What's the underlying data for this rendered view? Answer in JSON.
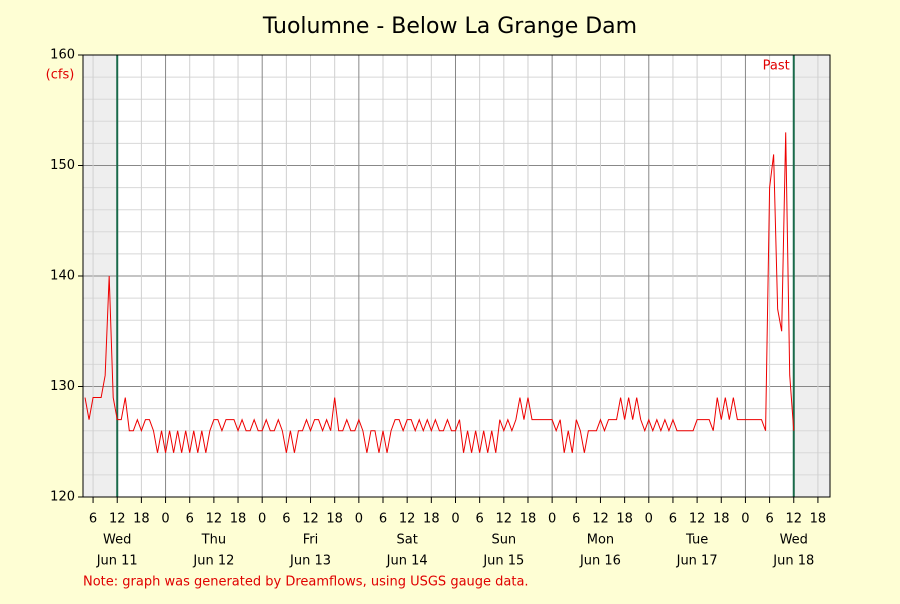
{
  "chart_data": {
    "type": "line",
    "title": "Tuolumne - Below La Grange Dam",
    "y_unit": "(cfs)",
    "marker_label": "Past",
    "note": "Note: graph was generated by Dreamflows, using USGS gauge data.",
    "xlim": [
      3.5,
      189
    ],
    "ylim": [
      120,
      160
    ],
    "yticks": [
      120,
      130,
      140,
      150,
      160
    ],
    "yminor": [
      122,
      124,
      126,
      128,
      132,
      134,
      136,
      138,
      142,
      144,
      146,
      148,
      152,
      154,
      156,
      158
    ],
    "xticks": [
      6,
      12,
      18,
      {
        "value": 24,
        "label": "0"
      },
      {
        "value": 30,
        "label": "6"
      },
      {
        "value": 36,
        "label": "12"
      },
      {
        "value": 42,
        "label": "18"
      },
      {
        "value": 48,
        "label": "0"
      },
      {
        "value": 54,
        "label": "6"
      },
      {
        "value": 60,
        "label": "12"
      },
      {
        "value": 66,
        "label": "18"
      },
      {
        "value": 72,
        "label": "0"
      },
      {
        "value": 78,
        "label": "6"
      },
      {
        "value": 84,
        "label": "12"
      },
      {
        "value": 90,
        "label": "18"
      },
      {
        "value": 96,
        "label": "0"
      },
      {
        "value": 102,
        "label": "6"
      },
      {
        "value": 108,
        "label": "12"
      },
      {
        "value": 114,
        "label": "18"
      },
      {
        "value": 120,
        "label": "0"
      },
      {
        "value": 126,
        "label": "6"
      },
      {
        "value": 132,
        "label": "12"
      },
      {
        "value": 138,
        "label": "18"
      },
      {
        "value": 144,
        "label": "0"
      },
      {
        "value": 150,
        "label": "6"
      },
      {
        "value": 156,
        "label": "12"
      },
      {
        "value": 162,
        "label": "18"
      },
      {
        "value": 168,
        "label": "0"
      },
      {
        "value": 174,
        "label": "6"
      },
      {
        "value": 180,
        "label": "12"
      },
      {
        "value": 186,
        "label": "18"
      }
    ],
    "day_labels": [
      {
        "value": 12,
        "weekday": "Wed",
        "date": "Jun 11"
      },
      {
        "value": 36,
        "weekday": "Thu",
        "date": "Jun 12"
      },
      {
        "value": 60,
        "weekday": "Fri",
        "date": "Jun 13"
      },
      {
        "value": 84,
        "weekday": "Sat",
        "date": "Jun 14"
      },
      {
        "value": 108,
        "weekday": "Sun",
        "date": "Jun 15"
      },
      {
        "value": 132,
        "weekday": "Mon",
        "date": "Jun 16"
      },
      {
        "value": 156,
        "weekday": "Tue",
        "date": "Jun 17"
      },
      {
        "value": 180,
        "weekday": "Wed",
        "date": "Jun 18"
      }
    ],
    "shaded": [
      [
        3.5,
        12
      ],
      [
        180,
        189
      ]
    ],
    "markers": [
      12,
      180
    ],
    "grid": true,
    "x": [
      4,
      5,
      6,
      7,
      8,
      9,
      10,
      11,
      12,
      13,
      14,
      15,
      16,
      17,
      18,
      19,
      20,
      21,
      22,
      23,
      24,
      25,
      26,
      27,
      28,
      29,
      30,
      31,
      32,
      33,
      34,
      35,
      36,
      37,
      38,
      39,
      40,
      41,
      42,
      43,
      44,
      45,
      46,
      47,
      48,
      49,
      50,
      51,
      52,
      53,
      54,
      55,
      56,
      57,
      58,
      59,
      60,
      61,
      62,
      63,
      64,
      65,
      66,
      67,
      68,
      69,
      70,
      71,
      72,
      73,
      74,
      75,
      76,
      77,
      78,
      79,
      80,
      81,
      82,
      83,
      84,
      85,
      86,
      87,
      88,
      89,
      90,
      91,
      92,
      93,
      94,
      95,
      96,
      97,
      98,
      99,
      100,
      101,
      102,
      103,
      104,
      105,
      106,
      107,
      108,
      109,
      110,
      111,
      112,
      113,
      114,
      115,
      116,
      117,
      118,
      119,
      120,
      121,
      122,
      123,
      124,
      125,
      126,
      127,
      128,
      129,
      130,
      131,
      132,
      133,
      134,
      135,
      136,
      137,
      138,
      139,
      140,
      141,
      142,
      143,
      144,
      145,
      146,
      147,
      148,
      149,
      150,
      151,
      152,
      153,
      154,
      155,
      156,
      157,
      158,
      159,
      160,
      161,
      162,
      163,
      164,
      165,
      166,
      167,
      168,
      169,
      170,
      171,
      172,
      173,
      174,
      175,
      176,
      177,
      178,
      179,
      180
    ],
    "series": [
      {
        "color": "#ee0000",
        "values": [
          129,
          127,
          129,
          129,
          129,
          131,
          140,
          129,
          127,
          127,
          129,
          126,
          126,
          127,
          126,
          127,
          127,
          126,
          124,
          126,
          124,
          126,
          124,
          126,
          124,
          126,
          124,
          126,
          124,
          126,
          124,
          126,
          127,
          127,
          126,
          127,
          127,
          127,
          126,
          127,
          126,
          126,
          127,
          126,
          126,
          127,
          126,
          126,
          127,
          126,
          124,
          126,
          124,
          126,
          126,
          127,
          126,
          127,
          127,
          126,
          127,
          126,
          129,
          126,
          126,
          127,
          126,
          126,
          127,
          126,
          124,
          126,
          126,
          124,
          126,
          124,
          126,
          127,
          127,
          126,
          127,
          127,
          126,
          127,
          126,
          127,
          126,
          127,
          126,
          126,
          127,
          126,
          126,
          127,
          124,
          126,
          124,
          126,
          124,
          126,
          124,
          126,
          124,
          127,
          126,
          127,
          126,
          127,
          129,
          127,
          129,
          127,
          127,
          127,
          127,
          127,
          127,
          126,
          127,
          124,
          126,
          124,
          127,
          126,
          124,
          126,
          126,
          126,
          127,
          126,
          127,
          127,
          127,
          129,
          127,
          129,
          127,
          129,
          127,
          126,
          127,
          126,
          127,
          126,
          127,
          126,
          127,
          126,
          126,
          126,
          126,
          126,
          127,
          127,
          127,
          127,
          126,
          129,
          127,
          129,
          127,
          129,
          127,
          127,
          127,
          127,
          127,
          127,
          127,
          126,
          148,
          151,
          137,
          135,
          153,
          131,
          126
        ]
      }
    ]
  }
}
